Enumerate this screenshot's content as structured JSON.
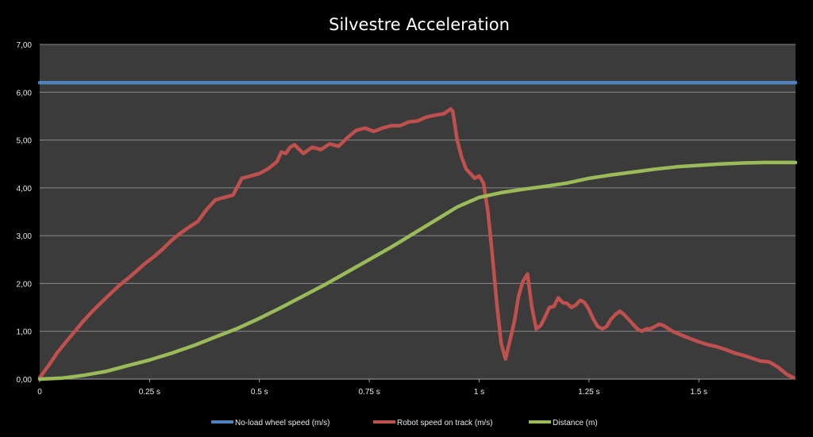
{
  "chart_data": {
    "type": "line",
    "title": "Silvestre Acceleration",
    "xlabel": "",
    "ylabel": "",
    "xlim": [
      0,
      1.72
    ],
    "ylim": [
      0,
      7
    ],
    "grid": true,
    "legend_position": "bottom",
    "y_ticks": [
      {
        "value": 0,
        "label": "0,00"
      },
      {
        "value": 1,
        "label": "1,00"
      },
      {
        "value": 2,
        "label": "2,00"
      },
      {
        "value": 3,
        "label": "3,00"
      },
      {
        "value": 4,
        "label": "4,00"
      },
      {
        "value": 5,
        "label": "5,00"
      },
      {
        "value": 6,
        "label": "6,00"
      },
      {
        "value": 7,
        "label": "7,00"
      }
    ],
    "x_ticks": [
      {
        "value": 0,
        "label": "0"
      },
      {
        "value": 0.25,
        "label": "0.25 s"
      },
      {
        "value": 0.5,
        "label": "0.5 s"
      },
      {
        "value": 0.75,
        "label": "0.75 s"
      },
      {
        "value": 1,
        "label": "1 s"
      },
      {
        "value": 1.25,
        "label": "1.25 s"
      },
      {
        "value": 1.5,
        "label": "1.5 s"
      }
    ],
    "colors": {
      "background": "#000000",
      "plot_area": "#3b3b3b",
      "gridline": "#8a8a8a"
    },
    "series": [
      {
        "name": "No-load wheel speed (m/s)",
        "color": "#4f81bd",
        "points": [
          [
            0,
            6.2
          ],
          [
            1.72,
            6.2
          ]
        ]
      },
      {
        "name": "Robot speed on track (m/s)",
        "color": "#c0504d",
        "points": [
          [
            0,
            0.03
          ],
          [
            0.02,
            0.28
          ],
          [
            0.04,
            0.55
          ],
          [
            0.06,
            0.78
          ],
          [
            0.08,
            1.0
          ],
          [
            0.1,
            1.22
          ],
          [
            0.12,
            1.42
          ],
          [
            0.14,
            1.6
          ],
          [
            0.16,
            1.78
          ],
          [
            0.18,
            1.95
          ],
          [
            0.2,
            2.1
          ],
          [
            0.22,
            2.26
          ],
          [
            0.24,
            2.42
          ],
          [
            0.26,
            2.56
          ],
          [
            0.28,
            2.72
          ],
          [
            0.3,
            2.9
          ],
          [
            0.32,
            3.05
          ],
          [
            0.34,
            3.18
          ],
          [
            0.36,
            3.3
          ],
          [
            0.38,
            3.55
          ],
          [
            0.4,
            3.75
          ],
          [
            0.42,
            3.8
          ],
          [
            0.44,
            3.85
          ],
          [
            0.46,
            4.2
          ],
          [
            0.48,
            4.25
          ],
          [
            0.5,
            4.3
          ],
          [
            0.52,
            4.4
          ],
          [
            0.54,
            4.55
          ],
          [
            0.55,
            4.75
          ],
          [
            0.56,
            4.72
          ],
          [
            0.57,
            4.85
          ],
          [
            0.58,
            4.9
          ],
          [
            0.6,
            4.72
          ],
          [
            0.62,
            4.85
          ],
          [
            0.64,
            4.8
          ],
          [
            0.66,
            4.92
          ],
          [
            0.68,
            4.87
          ],
          [
            0.7,
            5.05
          ],
          [
            0.72,
            5.2
          ],
          [
            0.74,
            5.25
          ],
          [
            0.76,
            5.18
          ],
          [
            0.78,
            5.25
          ],
          [
            0.8,
            5.3
          ],
          [
            0.82,
            5.3
          ],
          [
            0.84,
            5.38
          ],
          [
            0.86,
            5.4
          ],
          [
            0.88,
            5.48
          ],
          [
            0.9,
            5.52
          ],
          [
            0.92,
            5.55
          ],
          [
            0.935,
            5.65
          ],
          [
            0.94,
            5.6
          ],
          [
            0.95,
            5.0
          ],
          [
            0.96,
            4.65
          ],
          [
            0.97,
            4.4
          ],
          [
            0.98,
            4.3
          ],
          [
            0.99,
            4.2
          ],
          [
            1.0,
            4.25
          ],
          [
            1.01,
            4.1
          ],
          [
            1.02,
            3.5
          ],
          [
            1.03,
            2.6
          ],
          [
            1.04,
            1.6
          ],
          [
            1.05,
            0.75
          ],
          [
            1.06,
            0.42
          ],
          [
            1.07,
            0.8
          ],
          [
            1.08,
            1.2
          ],
          [
            1.09,
            1.75
          ],
          [
            1.1,
            2.05
          ],
          [
            1.11,
            2.2
          ],
          [
            1.12,
            1.5
          ],
          [
            1.13,
            1.05
          ],
          [
            1.14,
            1.12
          ],
          [
            1.15,
            1.3
          ],
          [
            1.16,
            1.5
          ],
          [
            1.17,
            1.52
          ],
          [
            1.18,
            1.7
          ],
          [
            1.19,
            1.6
          ],
          [
            1.2,
            1.58
          ],
          [
            1.21,
            1.5
          ],
          [
            1.22,
            1.55
          ],
          [
            1.23,
            1.65
          ],
          [
            1.24,
            1.6
          ],
          [
            1.25,
            1.45
          ],
          [
            1.26,
            1.25
          ],
          [
            1.27,
            1.1
          ],
          [
            1.28,
            1.05
          ],
          [
            1.29,
            1.1
          ],
          [
            1.3,
            1.25
          ],
          [
            1.31,
            1.35
          ],
          [
            1.32,
            1.42
          ],
          [
            1.33,
            1.35
          ],
          [
            1.34,
            1.25
          ],
          [
            1.35,
            1.15
          ],
          [
            1.36,
            1.05
          ],
          [
            1.37,
            1.0
          ],
          [
            1.38,
            1.05
          ],
          [
            1.39,
            1.05
          ],
          [
            1.4,
            1.1
          ],
          [
            1.41,
            1.15
          ],
          [
            1.42,
            1.12
          ],
          [
            1.44,
            1.0
          ],
          [
            1.46,
            0.92
          ],
          [
            1.48,
            0.85
          ],
          [
            1.5,
            0.78
          ],
          [
            1.52,
            0.72
          ],
          [
            1.54,
            0.68
          ],
          [
            1.56,
            0.62
          ],
          [
            1.58,
            0.55
          ],
          [
            1.6,
            0.5
          ],
          [
            1.62,
            0.44
          ],
          [
            1.64,
            0.38
          ],
          [
            1.66,
            0.36
          ],
          [
            1.68,
            0.25
          ],
          [
            1.7,
            0.1
          ],
          [
            1.715,
            0.03
          ]
        ]
      },
      {
        "name": "Distance (m)",
        "color": "#9bbb59",
        "points": [
          [
            0,
            0
          ],
          [
            0.05,
            0.02
          ],
          [
            0.1,
            0.08
          ],
          [
            0.15,
            0.16
          ],
          [
            0.2,
            0.28
          ],
          [
            0.25,
            0.4
          ],
          [
            0.3,
            0.54
          ],
          [
            0.35,
            0.7
          ],
          [
            0.4,
            0.88
          ],
          [
            0.45,
            1.06
          ],
          [
            0.5,
            1.27
          ],
          [
            0.55,
            1.5
          ],
          [
            0.6,
            1.74
          ],
          [
            0.65,
            1.98
          ],
          [
            0.7,
            2.24
          ],
          [
            0.75,
            2.5
          ],
          [
            0.8,
            2.76
          ],
          [
            0.85,
            3.04
          ],
          [
            0.9,
            3.32
          ],
          [
            0.95,
            3.6
          ],
          [
            1.0,
            3.8
          ],
          [
            1.05,
            3.9
          ],
          [
            1.1,
            3.97
          ],
          [
            1.15,
            4.03
          ],
          [
            1.2,
            4.1
          ],
          [
            1.25,
            4.2
          ],
          [
            1.3,
            4.27
          ],
          [
            1.35,
            4.33
          ],
          [
            1.4,
            4.39
          ],
          [
            1.45,
            4.44
          ],
          [
            1.5,
            4.47
          ],
          [
            1.55,
            4.5
          ],
          [
            1.6,
            4.52
          ],
          [
            1.65,
            4.53
          ],
          [
            1.72,
            4.53
          ]
        ]
      }
    ]
  }
}
